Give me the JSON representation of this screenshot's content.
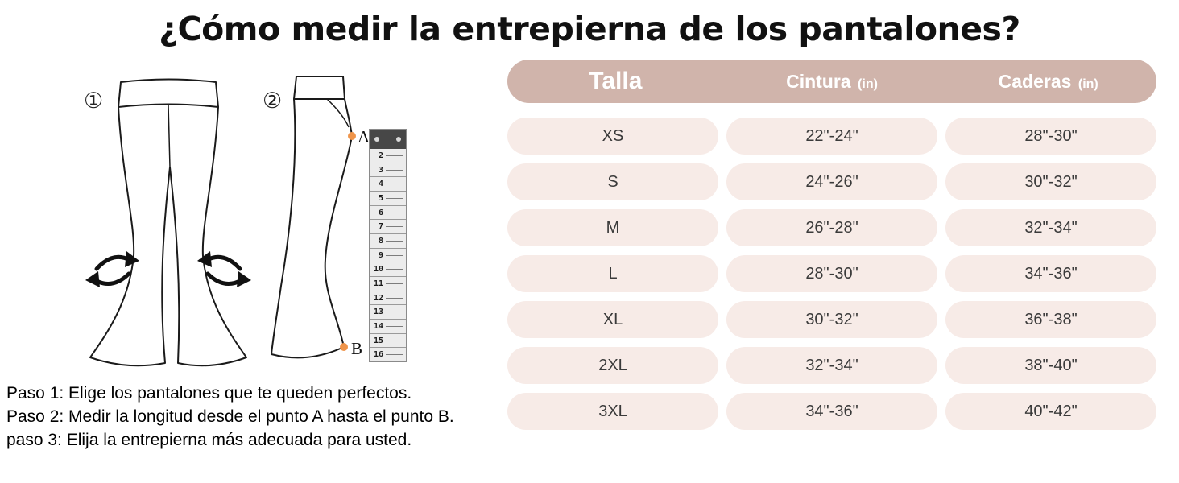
{
  "title": "¿Cómo medir la entrepierna de los pantalones?",
  "diagram": {
    "label_1": "①",
    "label_2": "②",
    "point_a_label": "A",
    "point_b_label": "B",
    "ruler_numbers": [
      "2",
      "3",
      "4",
      "5",
      "6",
      "7",
      "8",
      "9",
      "10",
      "11",
      "12",
      "13",
      "14",
      "15",
      "16"
    ]
  },
  "size_table": {
    "headers": [
      {
        "label": "Talla",
        "unit": ""
      },
      {
        "label": "Cintura",
        "unit": "(in)"
      },
      {
        "label": "Caderas",
        "unit": "(in)"
      }
    ],
    "rows": [
      {
        "talla": "XS",
        "cintura": "22\"-24\"",
        "caderas": "28\"-30\""
      },
      {
        "talla": "S",
        "cintura": "24\"-26\"",
        "caderas": "30\"-32\""
      },
      {
        "talla": "M",
        "cintura": "26\"-28\"",
        "caderas": "32\"-34\""
      },
      {
        "talla": "L",
        "cintura": "28\"-30\"",
        "caderas": "34\"-36\""
      },
      {
        "talla": "XL",
        "cintura": "30\"-32\"",
        "caderas": "36\"-38\""
      },
      {
        "talla": "2XL",
        "cintura": "32\"-34\"",
        "caderas": "38\"-40\""
      },
      {
        "talla": "3XL",
        "cintura": "34\"-36\"",
        "caderas": "40\"-42\""
      }
    ]
  },
  "steps": [
    "Paso 1: Elige los pantalones que te queden perfectos.",
    "Paso 2: Medir la longitud desde el punto A hasta el punto B.",
    "paso 3: Elija la entrepierna más adecuada para usted."
  ],
  "colors": {
    "header_bg": "#d0b4ab",
    "row_bg": "#f7ebe7",
    "header_text": "#ffffff",
    "accent_dot": "#ef944a"
  }
}
